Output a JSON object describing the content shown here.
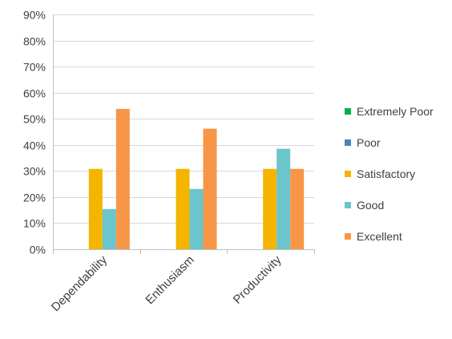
{
  "chart_data": {
    "type": "bar",
    "categories": [
      "Dependability",
      "Enthusiasm",
      "Productivity"
    ],
    "series": [
      {
        "name": "Extremely Poor",
        "color": "#00b050",
        "values": [
          0,
          0,
          0
        ]
      },
      {
        "name": "Poor",
        "color": "#4f81bd",
        "values": [
          0,
          0,
          0
        ]
      },
      {
        "name": "Satisfactory",
        "color": "#f4b400",
        "values": [
          30.8,
          30.8,
          30.8
        ]
      },
      {
        "name": "Good",
        "color": "#6ac5cc",
        "values": [
          15.4,
          23.1,
          38.5
        ]
      },
      {
        "name": "Excellent",
        "color": "#f79646",
        "values": [
          53.8,
          46.2,
          30.8
        ]
      }
    ],
    "ylim": [
      0,
      90
    ],
    "yticks": [
      "0%",
      "10%",
      "20%",
      "30%",
      "40%",
      "50%",
      "60%",
      "70%",
      "80%",
      "90%"
    ],
    "grid": true,
    "legend_position": "right"
  }
}
